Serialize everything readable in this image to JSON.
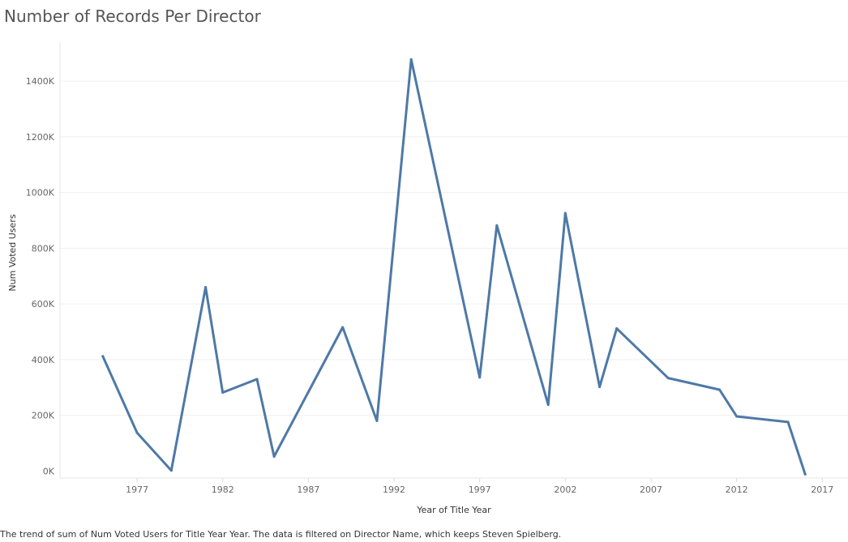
{
  "title": "Number of Records Per Director",
  "caption": "The trend of sum of Num Voted Users for Title Year Year. The data is filtered on Director Name, which keeps Steven Spielberg.",
  "chart_data": {
    "type": "line",
    "title": "Number of Records Per Director",
    "xlabel": "Year of Title Year",
    "ylabel": "Num Voted Users",
    "xlim": [
      1972.5,
      2018.5
    ],
    "ylim": [
      -25000,
      1540000
    ],
    "x_ticks": [
      1977,
      1982,
      1987,
      1992,
      1997,
      2002,
      2007,
      2012,
      2017
    ],
    "y_ticks": [
      0,
      200000,
      400000,
      600000,
      800000,
      1000000,
      1200000,
      1400000
    ],
    "y_tick_labels": [
      "0K",
      "200K",
      "400K",
      "600K",
      "800K",
      "1000K",
      "1200K",
      "1400K"
    ],
    "grid": "horizontal",
    "line_color": "#4e79a7",
    "series": [
      {
        "x": [
          1975,
          1977,
          1979,
          1981,
          1982,
          1984,
          1985,
          1989,
          1991,
          1993,
          1997,
          1998,
          2001,
          2002,
          2004,
          2005,
          2008,
          2011,
          2012,
          2015,
          2016
        ],
        "values": [
          412000,
          137000,
          2000,
          660000,
          282000,
          330000,
          52000,
          516000,
          180000,
          1478000,
          336000,
          882000,
          238000,
          926000,
          302000,
          512000,
          334000,
          292000,
          196000,
          176000,
          -12000
        ]
      }
    ]
  }
}
